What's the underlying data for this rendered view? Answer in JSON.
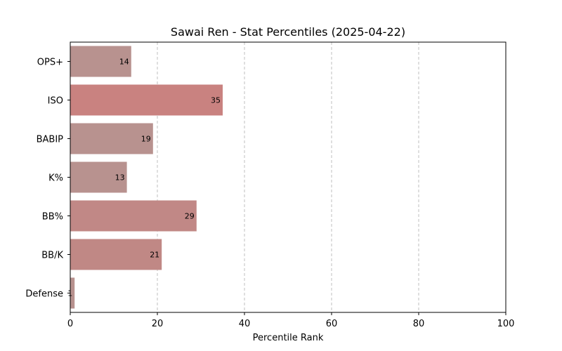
{
  "chart_data": {
    "type": "bar",
    "orientation": "horizontal",
    "title": "Sawai Ren - Stat Percentiles (2025-04-22)",
    "xlabel": "Percentile Rank",
    "ylabel": "",
    "xlim": [
      0,
      100
    ],
    "xticks": [
      0,
      20,
      40,
      60,
      80,
      100
    ],
    "grid": "vertical-dashed",
    "categories": [
      "OPS+",
      "ISO",
      "BABIP",
      "K%",
      "BB%",
      "BB/K",
      "Defense"
    ],
    "values": [
      14,
      35,
      19,
      13,
      29,
      21,
      1
    ],
    "colors": [
      "#b8928f",
      "#c98280",
      "#b8928f",
      "#b8928f",
      "#c18886",
      "#c08885",
      "#b8928f"
    ]
  }
}
